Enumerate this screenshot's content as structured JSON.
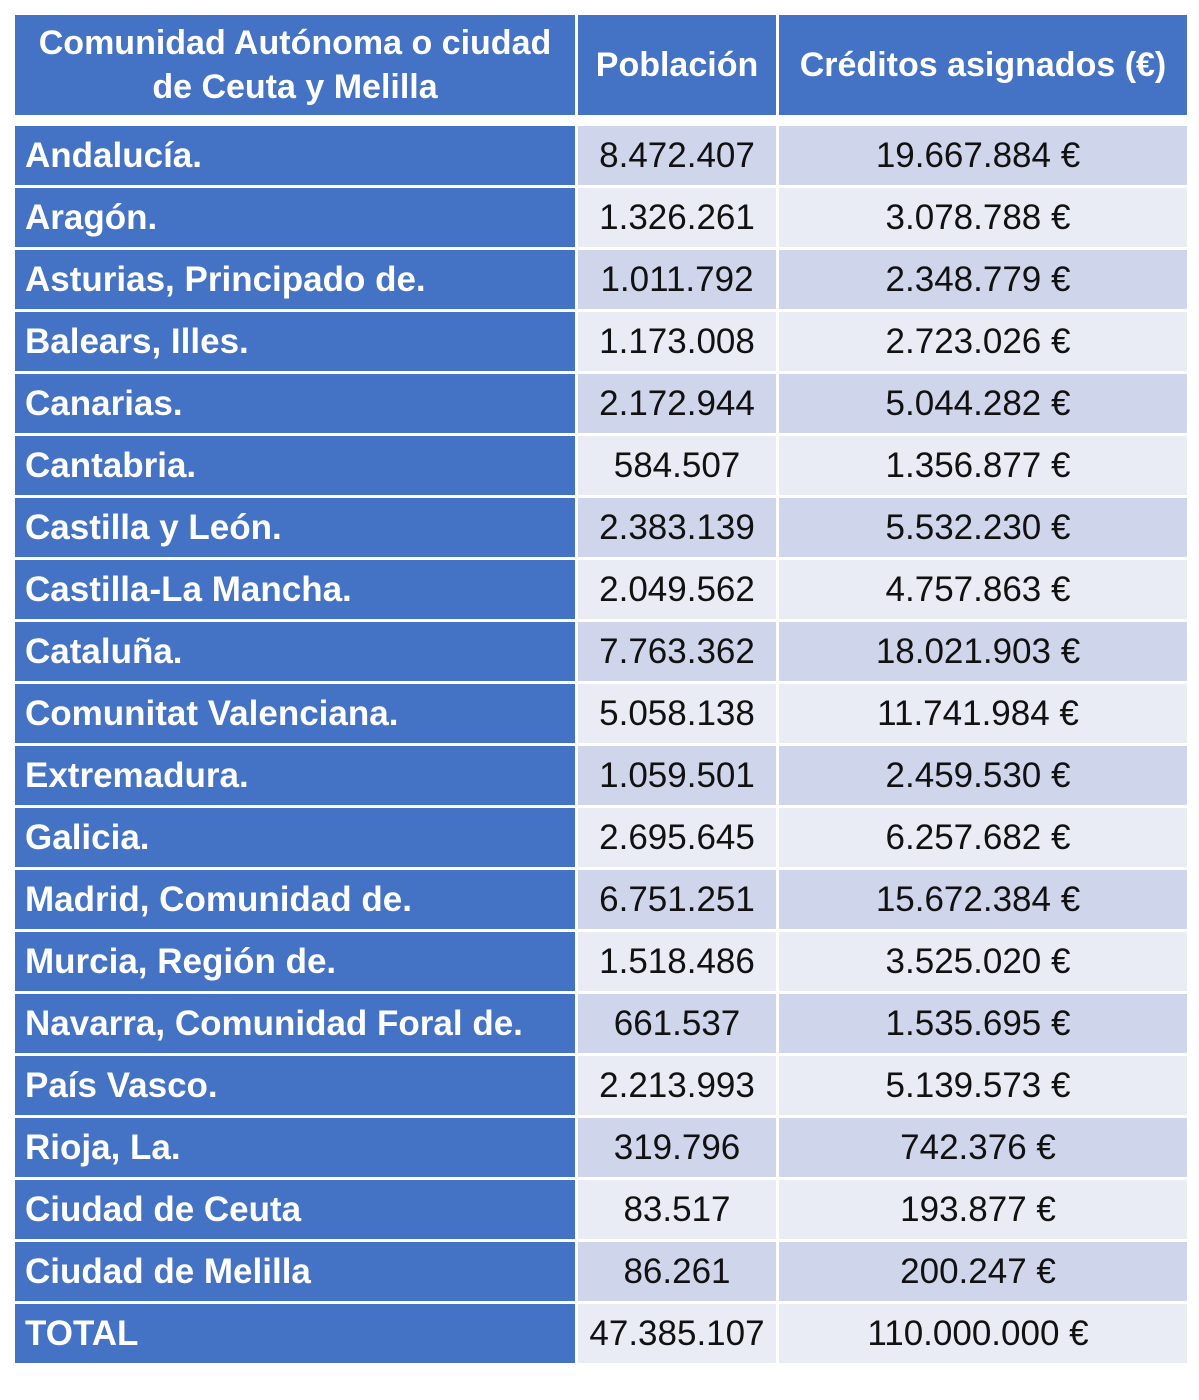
{
  "header": {
    "col_region": "Comunidad Autónoma o ciudad de Ceuta y Melilla",
    "col_poblacion": "Población",
    "col_creditos": "Créditos asignados (€)"
  },
  "rows": [
    {
      "region": "Andalucía.",
      "poblacion": "8.472.407",
      "creditos": "19.667.884 €"
    },
    {
      "region": "Aragón.",
      "poblacion": "1.326.261",
      "creditos": "3.078.788 €"
    },
    {
      "region": "Asturias, Principado de.",
      "poblacion": "1.011.792",
      "creditos": "2.348.779 €"
    },
    {
      "region": "Balears, Illes.",
      "poblacion": "1.173.008",
      "creditos": "2.723.026 €"
    },
    {
      "region": "Canarias.",
      "poblacion": "2.172.944",
      "creditos": "5.044.282 €"
    },
    {
      "region": "Cantabria.",
      "poblacion": "584.507",
      "creditos": "1.356.877 €"
    },
    {
      "region": "Castilla y León.",
      "poblacion": "2.383.139",
      "creditos": "5.532.230 €"
    },
    {
      "region": "Castilla-La Mancha.",
      "poblacion": "2.049.562",
      "creditos": "4.757.863 €"
    },
    {
      "region": "Cataluña.",
      "poblacion": "7.763.362",
      "creditos": "18.021.903 €"
    },
    {
      "region": "Comunitat Valenciana.",
      "poblacion": "5.058.138",
      "creditos": "11.741.984 €"
    },
    {
      "region": "Extremadura.",
      "poblacion": "1.059.501",
      "creditos": "2.459.530 €"
    },
    {
      "region": "Galicia.",
      "poblacion": "2.695.645",
      "creditos": "6.257.682 €"
    },
    {
      "region": "Madrid, Comunidad de.",
      "poblacion": "6.751.251",
      "creditos": "15.672.384 €"
    },
    {
      "region": "Murcia, Región de.",
      "poblacion": "1.518.486",
      "creditos": "3.525.020 €"
    },
    {
      "region": "Navarra, Comunidad Foral de.",
      "poblacion": "661.537",
      "creditos": "1.535.695 €"
    },
    {
      "region": "País Vasco.",
      "poblacion": "2.213.993",
      "creditos": "5.139.573 €"
    },
    {
      "region": "Rioja, La.",
      "poblacion": "319.796",
      "creditos": "742.376 €"
    },
    {
      "region": "Ciudad de Ceuta",
      "poblacion": "83.517",
      "creditos": "193.877 €"
    },
    {
      "region": "Ciudad de Melilla",
      "poblacion": "86.261",
      "creditos": "200.247 €"
    },
    {
      "region": "TOTAL",
      "poblacion": "47.385.107",
      "creditos": "110.000.000 €"
    }
  ],
  "colors": {
    "header_bg": "#4472c4",
    "row_odd_bg": "#cfd5ea",
    "row_even_bg": "#e9ebf5"
  }
}
